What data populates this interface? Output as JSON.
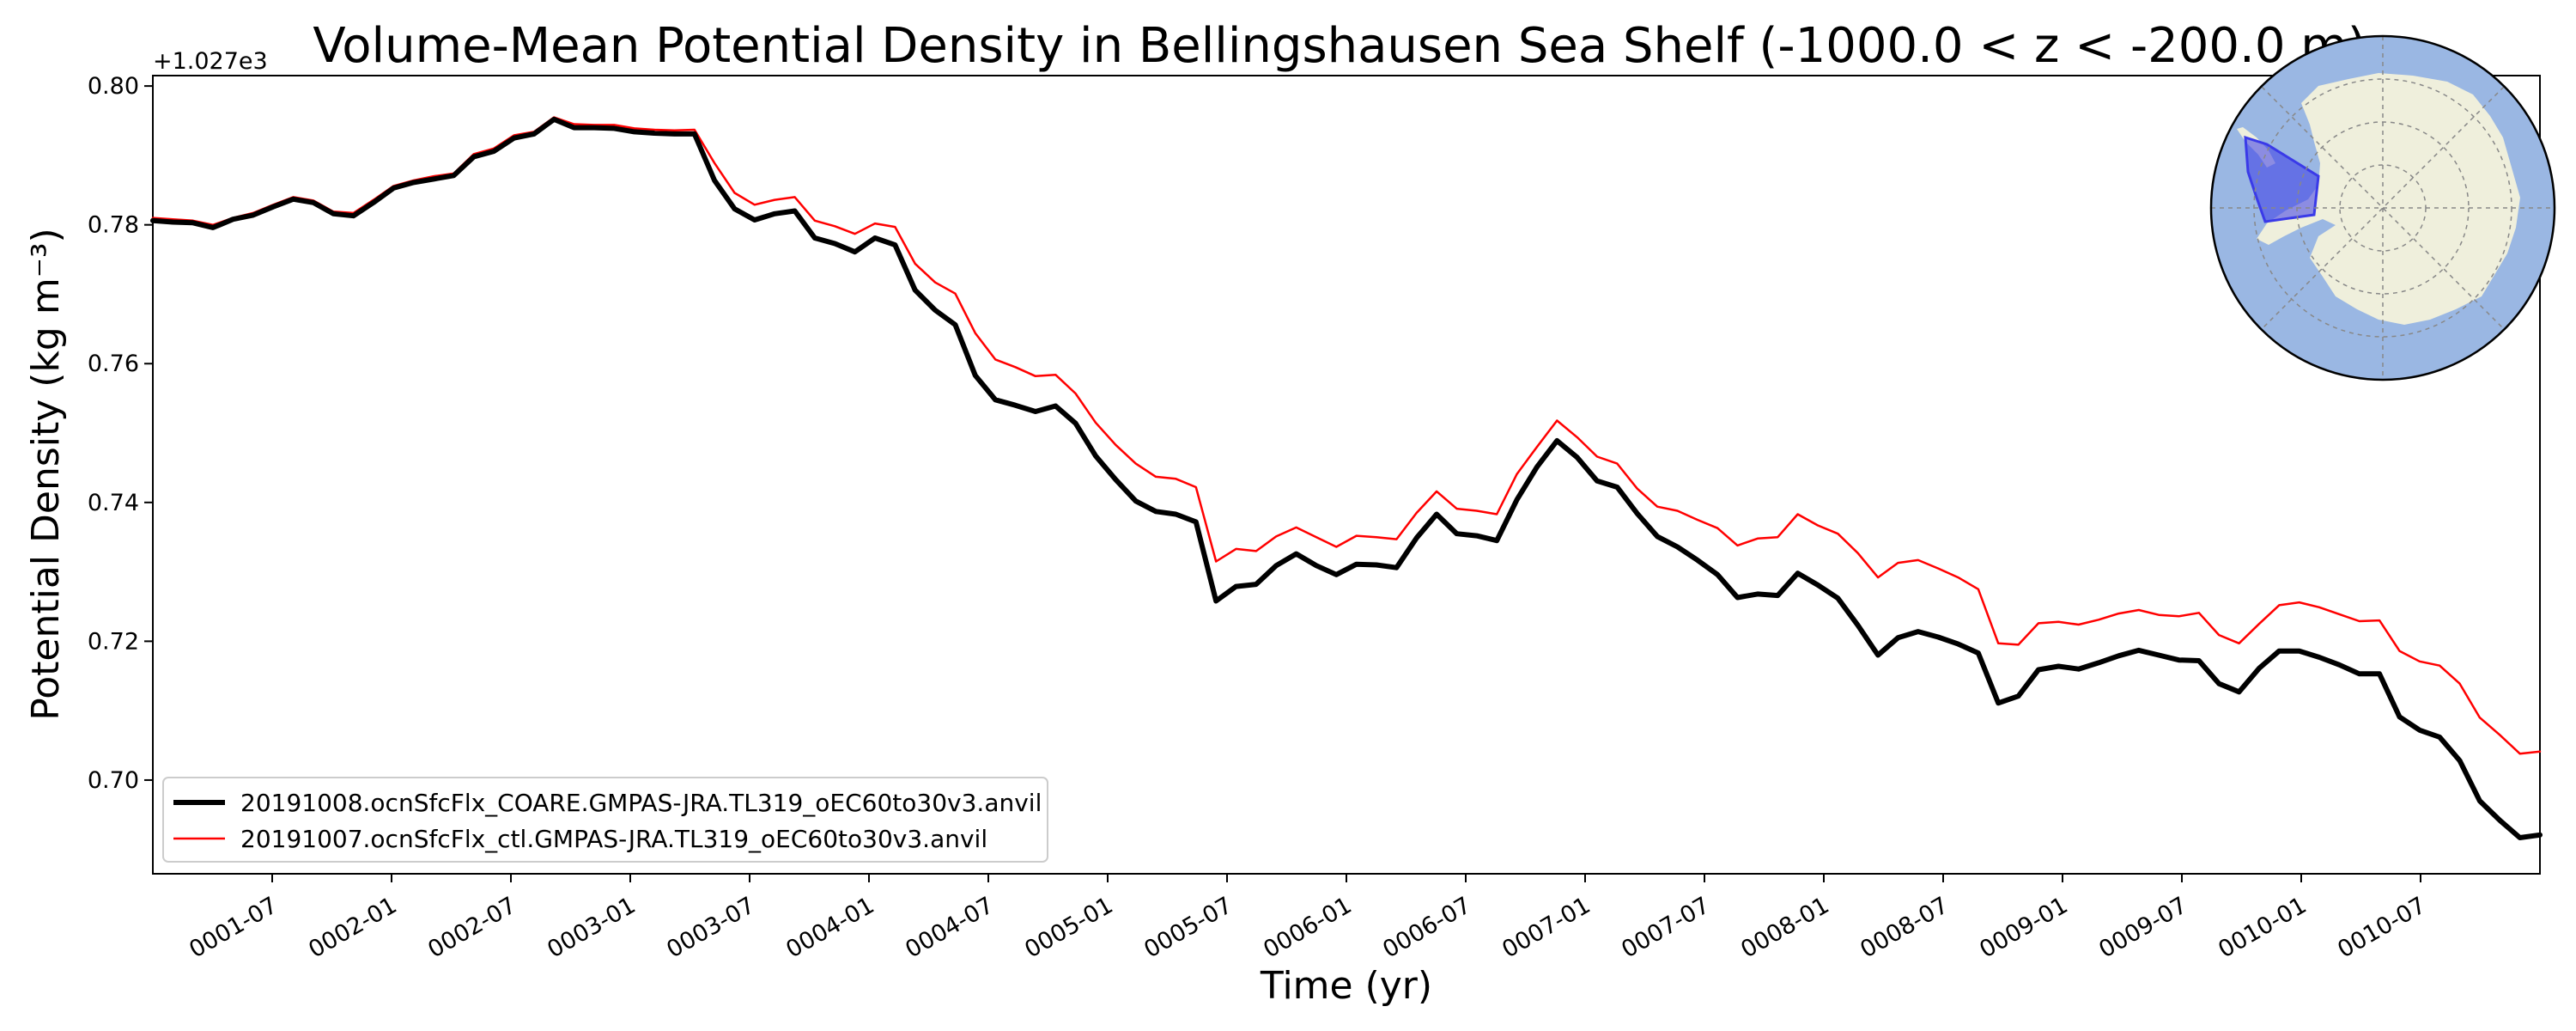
{
  "chart_data": {
    "type": "line",
    "title": "Volume-Mean Potential Density in Bellingshausen Sea Shelf (-1000.0 < z < -200.0 m)",
    "xlabel": "Time (yr)",
    "ylabel": "Potential Density (kg m⁻³)",
    "y_offset_label": "+1.027e3",
    "xlim": [
      0.0,
      10.0
    ],
    "ylim": [
      0.6865,
      0.8015
    ],
    "yticks": [
      0.7,
      0.72,
      0.74,
      0.76,
      0.78,
      0.8
    ],
    "ytick_labels": [
      "0.70",
      "0.72",
      "0.74",
      "0.76",
      "0.78",
      "0.80"
    ],
    "xticks": [
      0.5,
      1.0,
      1.5,
      2.0,
      2.5,
      3.0,
      3.5,
      4.0,
      4.5,
      5.0,
      5.5,
      6.0,
      6.5,
      7.0,
      7.5,
      8.0,
      8.5,
      9.0,
      9.5
    ],
    "xtick_labels": [
      "0001-07",
      "0002-01",
      "0002-07",
      "0003-01",
      "0003-07",
      "0004-01",
      "0004-07",
      "0005-01",
      "0005-07",
      "0006-01",
      "0006-07",
      "0007-01",
      "0007-07",
      "0008-01",
      "0008-07",
      "0009-01",
      "0009-07",
      "0010-01",
      "0010-07"
    ],
    "legend_location": "lower-left",
    "series": [
      {
        "name": "20191008.ocnSfcFlx_COARE.GMPAS-JRA.TL319_oEC60to30v3.anvil",
        "color": "#000000",
        "style": "thick",
        "values": [
          0.7806,
          0.7804,
          0.7803,
          0.7796,
          0.7808,
          0.7814,
          0.7826,
          0.7837,
          0.7832,
          0.7816,
          0.7813,
          0.7832,
          0.7853,
          0.7861,
          0.7866,
          0.7871,
          0.7898,
          0.7906,
          0.7925,
          0.7931,
          0.7952,
          0.794,
          0.794,
          0.7939,
          0.7934,
          0.7932,
          0.7931,
          0.7931,
          0.7864,
          0.7823,
          0.7807,
          0.7816,
          0.782,
          0.7781,
          0.7773,
          0.7761,
          0.7781,
          0.7771,
          0.7706,
          0.7677,
          0.7656,
          0.7583,
          0.7548,
          0.754,
          0.7531,
          0.7539,
          0.7514,
          0.7467,
          0.7433,
          0.7402,
          0.7387,
          0.7383,
          0.7372,
          0.7258,
          0.7279,
          0.7282,
          0.7309,
          0.7326,
          0.7309,
          0.7296,
          0.7311,
          0.731,
          0.7306,
          0.7349,
          0.7383,
          0.7355,
          0.7352,
          0.7345,
          0.7404,
          0.7451,
          0.7489,
          0.7465,
          0.7431,
          0.7422,
          0.7384,
          0.7351,
          0.7336,
          0.7317,
          0.7296,
          0.7263,
          0.7268,
          0.7266,
          0.7298,
          0.7281,
          0.7262,
          0.7223,
          0.718,
          0.7205,
          0.7214,
          0.7206,
          0.7196,
          0.7183,
          0.7111,
          0.7121,
          0.7159,
          0.7164,
          0.716,
          0.7169,
          0.7179,
          0.7187,
          0.718,
          0.7173,
          0.7172,
          0.7139,
          0.7127,
          0.7161,
          0.7186,
          0.7186,
          0.7177,
          0.7166,
          0.7153,
          0.7153,
          0.7091,
          0.7072,
          0.7062,
          0.7028,
          0.697,
          0.6942,
          0.6917,
          0.6921
        ]
      },
      {
        "name": "20191007.ocnSfcFlx_ctl.GMPAS-JRA.TL319_oEC60to30v3.anvil",
        "color": "#ff0000",
        "style": "thin",
        "values": [
          0.781,
          0.7808,
          0.7806,
          0.78,
          0.781,
          0.7817,
          0.7829,
          0.784,
          0.7835,
          0.7819,
          0.7817,
          0.7836,
          0.7856,
          0.7864,
          0.787,
          0.7874,
          0.7902,
          0.791,
          0.7929,
          0.7934,
          0.7955,
          0.7945,
          0.7944,
          0.7944,
          0.7939,
          0.7937,
          0.7936,
          0.7937,
          0.7889,
          0.7846,
          0.7829,
          0.7836,
          0.784,
          0.7806,
          0.7798,
          0.7787,
          0.7802,
          0.7797,
          0.7744,
          0.7717,
          0.7701,
          0.7644,
          0.7606,
          0.7595,
          0.7582,
          0.7584,
          0.7557,
          0.7515,
          0.7483,
          0.7456,
          0.7437,
          0.7434,
          0.7422,
          0.7315,
          0.7333,
          0.733,
          0.7351,
          0.7364,
          0.735,
          0.7336,
          0.7352,
          0.735,
          0.7347,
          0.7385,
          0.7416,
          0.7391,
          0.7388,
          0.7383,
          0.7441,
          0.748,
          0.7518,
          0.7494,
          0.7466,
          0.7456,
          0.742,
          0.7394,
          0.7388,
          0.7375,
          0.7363,
          0.7338,
          0.7348,
          0.735,
          0.7383,
          0.7367,
          0.7355,
          0.7327,
          0.7292,
          0.7313,
          0.7317,
          0.7305,
          0.7292,
          0.7275,
          0.7197,
          0.7195,
          0.7226,
          0.7228,
          0.7224,
          0.7231,
          0.724,
          0.7245,
          0.7238,
          0.7236,
          0.7241,
          0.7209,
          0.7197,
          0.7225,
          0.7252,
          0.7256,
          0.7249,
          0.7239,
          0.7229,
          0.723,
          0.7186,
          0.7171,
          0.7165,
          0.7139,
          0.709,
          0.7065,
          0.7038,
          0.7041
        ]
      }
    ],
    "inset_map": {
      "description_icon": "antarctica-map-icon",
      "ocean_color": "#9ab7e3",
      "land_color": "#efefdc",
      "region_color": "#3a3ae8"
    }
  }
}
